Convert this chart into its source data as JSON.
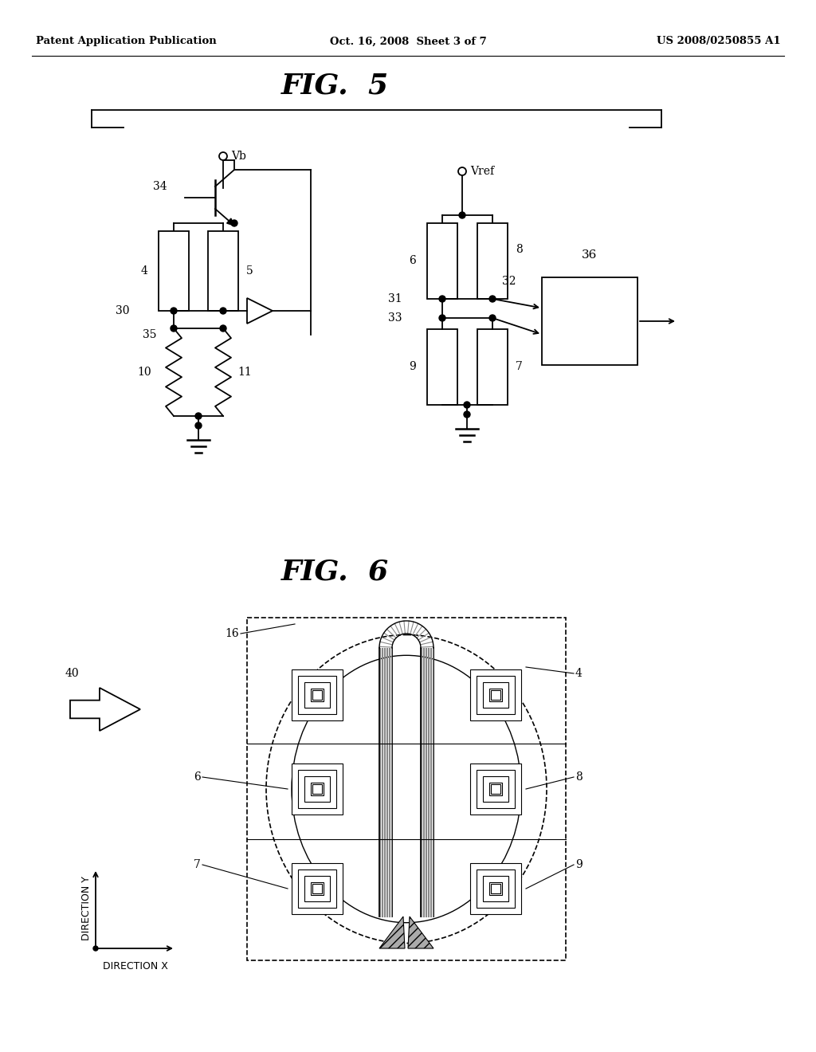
{
  "header_left": "Patent Application Publication",
  "header_mid": "Oct. 16, 2008  Sheet 3 of 7",
  "header_right": "US 2008/0250855 A1",
  "fig5_title": "FIG.  5",
  "fig6_title": "FIG.  6",
  "bg_color": "#ffffff",
  "line_color": "#000000"
}
